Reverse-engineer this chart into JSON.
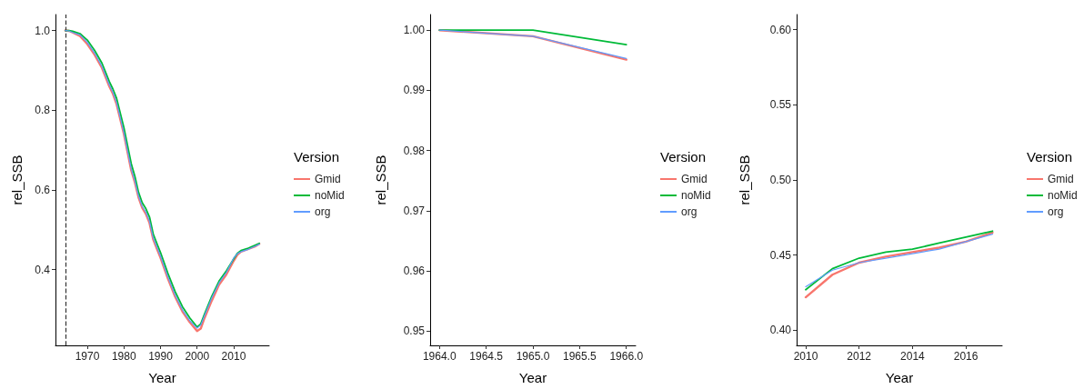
{
  "chart_data": [
    {
      "type": "line",
      "xlabel": "Year",
      "ylabel": "rel_SSB",
      "legend_title": "Version",
      "legend": "right",
      "xlim": [
        1961.3,
        2019.7
      ],
      "xticks": [
        1970,
        1980,
        1990,
        2000,
        2010
      ],
      "ylim": [
        0.21,
        1.04
      ],
      "yticks": [
        0.4,
        0.6,
        0.8,
        {
          "value": 1,
          "label": "1.0"
        }
      ],
      "ref_lines": [
        {
          "axis": "x",
          "value": 1964,
          "color": "#333333",
          "line_style": "dashed"
        }
      ],
      "x": [
        1964,
        1965,
        1966,
        1968,
        1970,
        1972,
        1974,
        1976,
        1977,
        1978,
        1980,
        1982,
        1983,
        1984,
        1985,
        1986,
        1987,
        1988,
        1989,
        1990,
        1992,
        1994,
        1996,
        1998,
        2000,
        2001,
        2002,
        2004,
        2006,
        2008,
        2010,
        2011,
        2012,
        2014,
        2016,
        2017
      ],
      "series": [
        {
          "name": "Gmid",
          "color": "#f8766d",
          "values": [
            1.0,
            0.999,
            0.995,
            0.986,
            0.966,
            0.939,
            0.906,
            0.86,
            0.841,
            0.815,
            0.74,
            0.649,
            0.619,
            0.581,
            0.555,
            0.54,
            0.517,
            0.476,
            0.453,
            0.43,
            0.378,
            0.332,
            0.295,
            0.268,
            0.246,
            0.252,
            0.278,
            0.322,
            0.362,
            0.388,
            0.422,
            0.437,
            0.445,
            0.452,
            0.459,
            0.465
          ]
        },
        {
          "name": "noMid",
          "color": "#00ba38",
          "values": [
            1.0,
            1.0,
            0.998,
            0.992,
            0.976,
            0.95,
            0.918,
            0.872,
            0.853,
            0.83,
            0.756,
            0.666,
            0.634,
            0.594,
            0.568,
            0.553,
            0.532,
            0.49,
            0.466,
            0.443,
            0.391,
            0.345,
            0.307,
            0.279,
            0.256,
            0.264,
            0.288,
            0.333,
            0.371,
            0.397,
            0.427,
            0.441,
            0.448,
            0.454,
            0.462,
            0.466
          ]
        },
        {
          "name": "org",
          "color": "#619cff",
          "values": [
            1.0,
            0.999,
            0.995,
            0.989,
            0.97,
            0.943,
            0.91,
            0.864,
            0.845,
            0.819,
            0.744,
            0.653,
            0.623,
            0.585,
            0.559,
            0.544,
            0.521,
            0.48,
            0.457,
            0.434,
            0.382,
            0.336,
            0.299,
            0.272,
            0.253,
            0.261,
            0.284,
            0.329,
            0.367,
            0.393,
            0.429,
            0.44,
            0.445,
            0.451,
            0.459,
            0.464
          ]
        }
      ]
    },
    {
      "type": "line",
      "xlabel": "Year",
      "ylabel": "rel_SSB",
      "legend_title": "Version",
      "legend": "right",
      "xlim": [
        1963.9,
        1966.1
      ],
      "xticks": [
        {
          "value": 1964,
          "label": "1964.0"
        },
        1964.5,
        {
          "value": 1965,
          "label": "1965.0"
        },
        1965.5,
        {
          "value": 1966,
          "label": "1966.0"
        }
      ],
      "ylim": [
        0.9476,
        1.0026
      ],
      "yticks": [
        0.95,
        0.96,
        0.97,
        0.98,
        0.99,
        {
          "value": 1,
          "label": "1.00"
        }
      ],
      "x": [
        1964,
        1965,
        1966
      ],
      "series": [
        {
          "name": "Gmid",
          "color": "#f8766d",
          "values": [
            1.0,
            0.999,
            0.9951
          ]
        },
        {
          "name": "noMid",
          "color": "#00ba38",
          "values": [
            1.0,
            1.0,
            0.9976
          ]
        },
        {
          "name": "org",
          "color": "#619cff",
          "values": [
            1.0,
            0.999,
            0.9953
          ]
        }
      ]
    },
    {
      "type": "line",
      "xlabel": "Year",
      "ylabel": "rel_SSB",
      "legend_title": "Version",
      "legend": "right",
      "xlim": [
        2009.66,
        2017.36
      ],
      "xticks": [
        2010,
        2012,
        2014,
        2016
      ],
      "ylim": [
        0.39,
        0.61
      ],
      "yticks": [
        {
          "value": 0.4,
          "label": "0.40"
        },
        0.45,
        {
          "value": 0.5,
          "label": "0.50"
        },
        0.55,
        {
          "value": 0.6,
          "label": "0.60"
        }
      ],
      "x": [
        2010,
        2011,
        2012,
        2013,
        2014,
        2015,
        2016,
        2017
      ],
      "series": [
        {
          "name": "Gmid",
          "color": "#f8766d",
          "values": [
            0.422,
            0.437,
            0.445,
            0.449,
            0.452,
            0.455,
            0.459,
            0.465
          ]
        },
        {
          "name": "noMid",
          "color": "#00ba38",
          "values": [
            0.427,
            0.441,
            0.448,
            0.452,
            0.454,
            0.458,
            0.462,
            0.466
          ]
        },
        {
          "name": "org",
          "color": "#619cff",
          "values": [
            0.429,
            0.44,
            0.445,
            0.448,
            0.451,
            0.454,
            0.459,
            0.464
          ]
        }
      ]
    }
  ]
}
